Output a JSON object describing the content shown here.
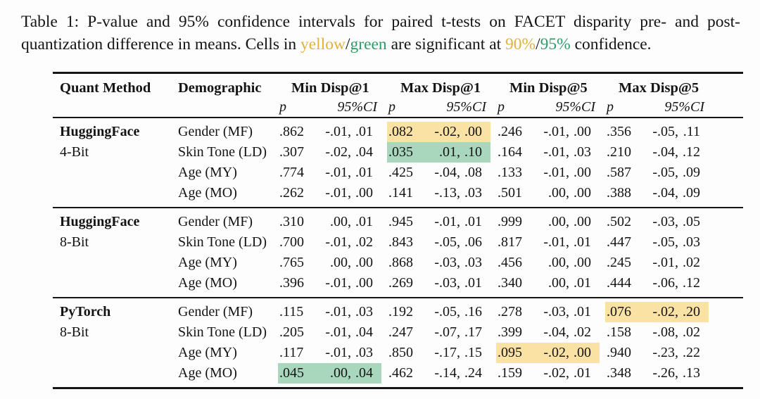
{
  "colors": {
    "highlight_yellow": "#FAE1A4",
    "highlight_green": "#A9D7BD",
    "text_yellow": "#E0B23C",
    "text_green": "#2D9C69",
    "rule": "#161616",
    "background": "#fdfdfd"
  },
  "caption": {
    "segments": [
      {
        "text": "Table 1: P-value and 95% confidence intervals for paired t-tests on FACET disparity pre- and post-quantization difference in means. Cells in ",
        "color": "black"
      },
      {
        "text": "yellow",
        "color": "yellow"
      },
      {
        "text": "/",
        "color": "black"
      },
      {
        "text": "green",
        "color": "green"
      },
      {
        "text": " are significant at ",
        "color": "black"
      },
      {
        "text": "90%",
        "color": "yellow"
      },
      {
        "text": "/",
        "color": "black"
      },
      {
        "text": "95%",
        "color": "green"
      },
      {
        "text": " confidence.",
        "color": "black"
      }
    ]
  },
  "table": {
    "headers": {
      "quant_method": "Quant Method",
      "demographic": "Demographic",
      "groups": [
        "Min Disp@1",
        "Max Disp@1",
        "Min Disp@5",
        "Max Disp@5"
      ],
      "sub_p": "p",
      "sub_ci": "95%CI"
    },
    "groups": [
      {
        "method": "HuggingFace",
        "variant": "4-Bit",
        "rows": [
          {
            "demographic": "Gender (MF)",
            "cells": [
              {
                "p": ".862",
                "lo": "-.01",
                "hi": ".01",
                "hl": null
              },
              {
                "p": ".082",
                "lo": "-.02",
                "hi": ".00",
                "hl": "yellow"
              },
              {
                "p": ".246",
                "lo": "-.01",
                "hi": ".00",
                "hl": null
              },
              {
                "p": ".356",
                "lo": "-.05",
                "hi": ".11",
                "hl": null
              }
            ]
          },
          {
            "demographic": "Skin Tone (LD)",
            "cells": [
              {
                "p": ".307",
                "lo": "-.02",
                "hi": ".04",
                "hl": null
              },
              {
                "p": ".035",
                "lo": ".01",
                "hi": ".10",
                "hl": "green"
              },
              {
                "p": ".164",
                "lo": "-.01",
                "hi": ".03",
                "hl": null
              },
              {
                "p": ".210",
                "lo": "-.04",
                "hi": ".12",
                "hl": null
              }
            ]
          },
          {
            "demographic": "Age (MY)",
            "cells": [
              {
                "p": ".774",
                "lo": "-.01",
                "hi": ".01",
                "hl": null
              },
              {
                "p": ".425",
                "lo": "-.04",
                "hi": ".08",
                "hl": null
              },
              {
                "p": ".133",
                "lo": "-.01",
                "hi": ".00",
                "hl": null
              },
              {
                "p": ".587",
                "lo": "-.05",
                "hi": ".09",
                "hl": null
              }
            ]
          },
          {
            "demographic": "Age (MO)",
            "cells": [
              {
                "p": ".262",
                "lo": "-.01",
                "hi": ".00",
                "hl": null
              },
              {
                "p": ".141",
                "lo": "-.13",
                "hi": ".03",
                "hl": null
              },
              {
                "p": ".501",
                "lo": ".00",
                "hi": ".00",
                "hl": null
              },
              {
                "p": ".388",
                "lo": "-.04",
                "hi": ".09",
                "hl": null
              }
            ]
          }
        ]
      },
      {
        "method": "HuggingFace",
        "variant": "8-Bit",
        "rows": [
          {
            "demographic": "Gender (MF)",
            "cells": [
              {
                "p": ".310",
                "lo": ".00",
                "hi": ".01",
                "hl": null
              },
              {
                "p": ".945",
                "lo": "-.01",
                "hi": ".01",
                "hl": null
              },
              {
                "p": ".999",
                "lo": ".00",
                "hi": ".00",
                "hl": null
              },
              {
                "p": ".502",
                "lo": "-.03",
                "hi": ".05",
                "hl": null
              }
            ]
          },
          {
            "demographic": "Skin Tone (LD)",
            "cells": [
              {
                "p": ".700",
                "lo": "-.01",
                "hi": ".02",
                "hl": null
              },
              {
                "p": ".843",
                "lo": "-.05",
                "hi": ".06",
                "hl": null
              },
              {
                "p": ".817",
                "lo": "-.01",
                "hi": ".01",
                "hl": null
              },
              {
                "p": ".447",
                "lo": "-.05",
                "hi": ".03",
                "hl": null
              }
            ]
          },
          {
            "demographic": "Age (MY)",
            "cells": [
              {
                "p": ".765",
                "lo": ".00",
                "hi": ".00",
                "hl": null
              },
              {
                "p": ".868",
                "lo": "-.03",
                "hi": ".03",
                "hl": null
              },
              {
                "p": ".456",
                "lo": ".00",
                "hi": ".00",
                "hl": null
              },
              {
                "p": ".245",
                "lo": "-.01",
                "hi": ".02",
                "hl": null
              }
            ]
          },
          {
            "demographic": "Age (MO)",
            "cells": [
              {
                "p": ".396",
                "lo": "-.01",
                "hi": ".00",
                "hl": null
              },
              {
                "p": ".269",
                "lo": "-.03",
                "hi": ".01",
                "hl": null
              },
              {
                "p": ".340",
                "lo": ".00",
                "hi": ".01",
                "hl": null
              },
              {
                "p": ".444",
                "lo": "-.06",
                "hi": ".12",
                "hl": null
              }
            ]
          }
        ]
      },
      {
        "method": "PyTorch",
        "variant": "8-Bit",
        "rows": [
          {
            "demographic": "Gender (MF)",
            "cells": [
              {
                "p": ".115",
                "lo": "-.01",
                "hi": ".03",
                "hl": null
              },
              {
                "p": ".192",
                "lo": "-.05",
                "hi": ".16",
                "hl": null
              },
              {
                "p": ".278",
                "lo": "-.03",
                "hi": ".01",
                "hl": null
              },
              {
                "p": ".076",
                "lo": "-.02",
                "hi": ".20",
                "hl": "yellow"
              }
            ]
          },
          {
            "demographic": "Skin Tone (LD)",
            "cells": [
              {
                "p": ".205",
                "lo": "-.01",
                "hi": ".04",
                "hl": null
              },
              {
                "p": ".247",
                "lo": "-.07",
                "hi": ".17",
                "hl": null
              },
              {
                "p": ".399",
                "lo": "-.04",
                "hi": ".02",
                "hl": null
              },
              {
                "p": ".158",
                "lo": "-.08",
                "hi": ".02",
                "hl": null
              }
            ]
          },
          {
            "demographic": "Age (MY)",
            "cells": [
              {
                "p": ".117",
                "lo": "-.01",
                "hi": ".03",
                "hl": null
              },
              {
                "p": ".850",
                "lo": "-.17",
                "hi": ".15",
                "hl": null
              },
              {
                "p": ".095",
                "lo": "-.02",
                "hi": ".00",
                "hl": "yellow"
              },
              {
                "p": ".940",
                "lo": "-.23",
                "hi": ".22",
                "hl": null
              }
            ]
          },
          {
            "demographic": "Age (MO)",
            "cells": [
              {
                "p": ".045",
                "lo": ".00",
                "hi": ".04",
                "hl": "green"
              },
              {
                "p": ".462",
                "lo": "-.14",
                "hi": ".24",
                "hl": null
              },
              {
                "p": ".159",
                "lo": "-.02",
                "hi": ".01",
                "hl": null
              },
              {
                "p": ".348",
                "lo": "-.26",
                "hi": ".13",
                "hl": null
              }
            ]
          }
        ]
      }
    ]
  }
}
